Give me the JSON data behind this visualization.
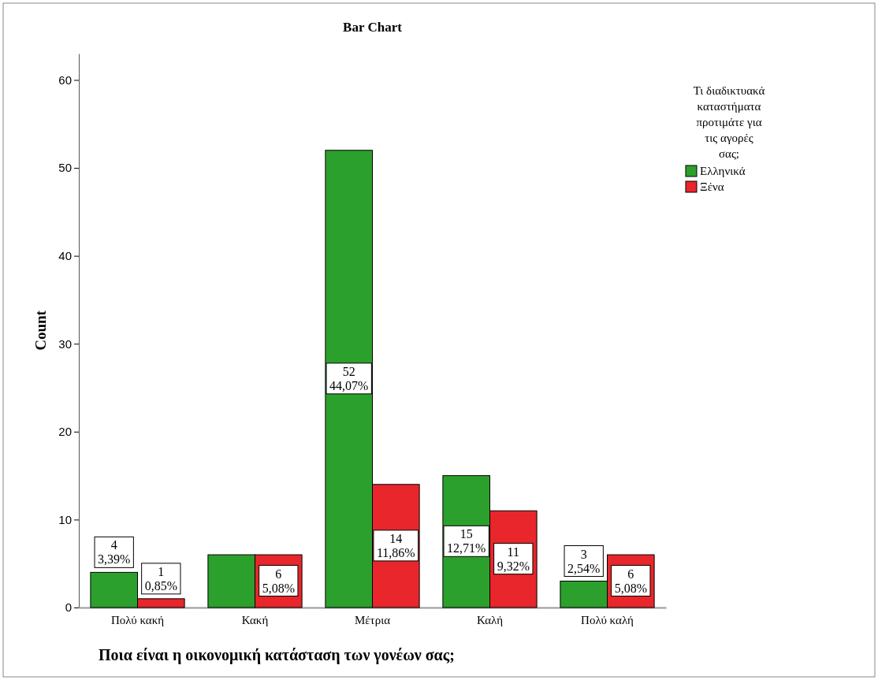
{
  "chart_data": {
    "type": "bar",
    "title": "Bar Chart",
    "xlabel": "Ποια είναι η οικονομική κατάσταση των γονέων σας;",
    "ylabel": "Count",
    "legend_title": "Τι διαδικτυακά καταστήματα προτιμάτε για τις αγορές σας;",
    "categories": [
      "Πολύ κακή",
      "Κακή",
      "Μέτρια",
      "Καλή",
      "Πολύ καλή"
    ],
    "series": [
      {
        "name": "Ελληνικά",
        "color": "#2ca02c",
        "values": [
          4,
          6,
          52,
          15,
          3
        ],
        "value_labels": [
          "4\n3,39%",
          null,
          "52\n44,07%",
          "15\n12,71%",
          "3\n2,54%"
        ]
      },
      {
        "name": "Ξένα",
        "color": "#e8262b",
        "values": [
          1,
          6,
          14,
          11,
          6
        ],
        "value_labels": [
          "1\n0,85%",
          "6\n5,08%",
          "14\n11,86%",
          "11\n9,32%",
          "6\n5,08%"
        ]
      }
    ],
    "ylim": [
      0,
      63
    ],
    "yticks": [
      0,
      10,
      20,
      30,
      40,
      50,
      60
    ],
    "grid": false,
    "legend": "top right"
  }
}
